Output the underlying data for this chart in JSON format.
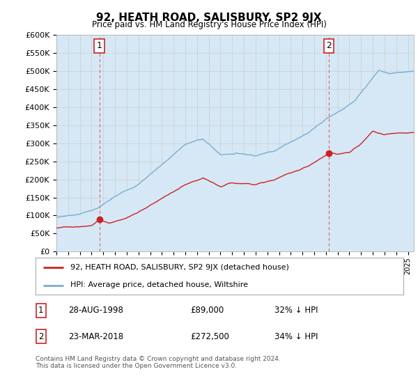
{
  "title": "92, HEATH ROAD, SALISBURY, SP2 9JX",
  "subtitle": "Price paid vs. HM Land Registry's House Price Index (HPI)",
  "ylabel_ticks": [
    "£0",
    "£50K",
    "£100K",
    "£150K",
    "£200K",
    "£250K",
    "£300K",
    "£350K",
    "£400K",
    "£450K",
    "£500K",
    "£550K",
    "£600K"
  ],
  "ylim": [
    0,
    600000
  ],
  "ytick_values": [
    0,
    50000,
    100000,
    150000,
    200000,
    250000,
    300000,
    350000,
    400000,
    450000,
    500000,
    550000,
    600000
  ],
  "xlim_start": 1995.0,
  "xlim_end": 2025.5,
  "hpi_color": "#7aadcf",
  "hpi_fill_color": "#d6e8f5",
  "price_color": "#cc2222",
  "background_color": "#ffffff",
  "grid_color": "#cccccc",
  "purchase1_year": 1998.66,
  "purchase1_price": 89000,
  "purchase2_year": 2018.23,
  "purchase2_price": 272500,
  "legend_label1": "92, HEATH ROAD, SALISBURY, SP2 9JX (detached house)",
  "legend_label2": "HPI: Average price, detached house, Wiltshire",
  "table_row1_date": "28-AUG-1998",
  "table_row1_price": "£89,000",
  "table_row1_hpi": "32% ↓ HPI",
  "table_row2_date": "23-MAR-2018",
  "table_row2_price": "£272,500",
  "table_row2_hpi": "34% ↓ HPI",
  "footer": "Contains HM Land Registry data © Crown copyright and database right 2024.\nThis data is licensed under the Open Government Licence v3.0."
}
